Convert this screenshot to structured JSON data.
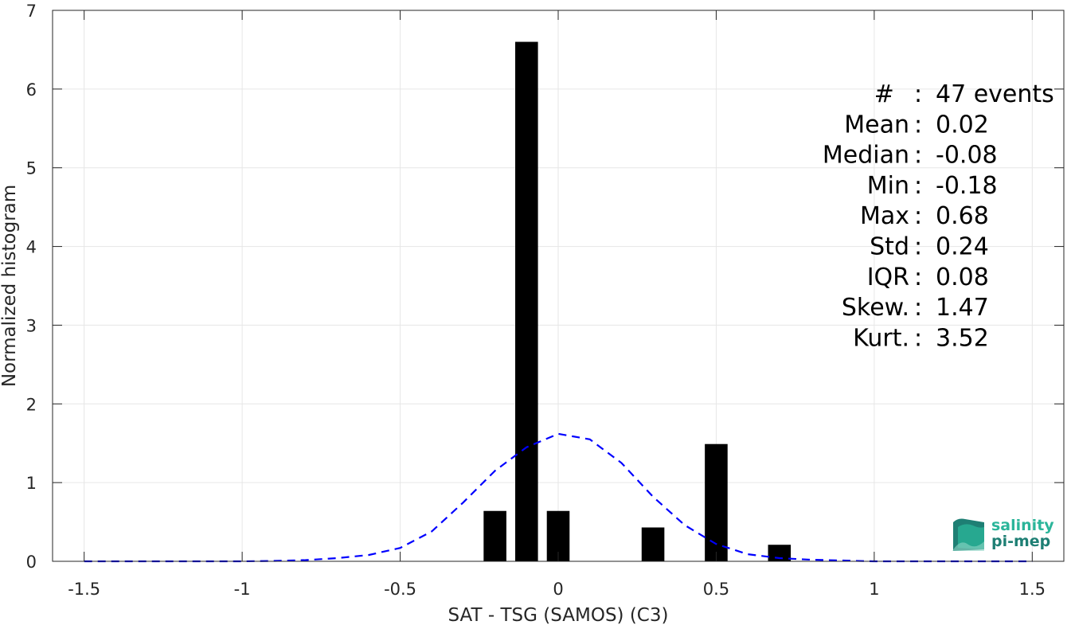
{
  "chart_data": {
    "type": "bar",
    "xlabel": "SAT - TSG (SAMOS) (C3)",
    "ylabel": "Normalized histogram",
    "xlim": [
      -1.6,
      1.6
    ],
    "ylim": [
      0,
      7
    ],
    "xticks": [
      -1.5,
      -1,
      -0.5,
      0,
      0.5,
      1,
      1.5
    ],
    "xtick_labels": [
      "-1.5",
      "-1",
      "-0.5",
      "0",
      "0.5",
      "1",
      "1.5"
    ],
    "yticks": [
      0,
      1,
      2,
      3,
      4,
      5,
      6,
      7
    ],
    "ytick_labels": [
      "0",
      "1",
      "2",
      "3",
      "4",
      "5",
      "6",
      "7"
    ],
    "grid": true,
    "bin_width": 0.1,
    "bars": [
      {
        "x": -0.2,
        "value": 0.64
      },
      {
        "x": -0.1,
        "value": 6.6
      },
      {
        "x": 0.0,
        "value": 0.64
      },
      {
        "x": 0.3,
        "value": 0.43
      },
      {
        "x": 0.5,
        "value": 1.49
      },
      {
        "x": 0.7,
        "value": 0.21
      }
    ],
    "bar_color": "#000000",
    "fit_curve": {
      "style": "dashed",
      "color": "#0000ff",
      "x": [
        -1.5,
        -1.4,
        -1.3,
        -1.2,
        -1.1,
        -1.0,
        -0.9,
        -0.8,
        -0.7,
        -0.6,
        -0.5,
        -0.4,
        -0.3,
        -0.2,
        -0.1,
        0.0,
        0.1,
        0.2,
        0.3,
        0.4,
        0.5,
        0.6,
        0.7,
        0.8,
        0.9,
        1.0,
        1.1,
        1.2,
        1.3,
        1.4,
        1.5
      ],
      "y": [
        0.0,
        0.0,
        0.0,
        0.0,
        0.0,
        0.0,
        0.005,
        0.015,
        0.04,
        0.08,
        0.17,
        0.38,
        0.75,
        1.15,
        1.45,
        1.62,
        1.55,
        1.25,
        0.82,
        0.46,
        0.22,
        0.09,
        0.04,
        0.02,
        0.01,
        0.0,
        0.0,
        0.0,
        0.0,
        0.0,
        0.0
      ]
    },
    "stats": [
      {
        "label": "#  ",
        "value": "47 events"
      },
      {
        "label": "Mean",
        "value": "0.02"
      },
      {
        "label": "Median",
        "value": "-0.08"
      },
      {
        "label": "Min",
        "value": "-0.18"
      },
      {
        "label": "Max",
        "value": "0.68"
      },
      {
        "label": "Std",
        "value": "0.24"
      },
      {
        "label": "IQR",
        "value": "0.08"
      },
      {
        "label": "Skew.",
        "value": "1.47"
      },
      {
        "label": "Kurt.",
        "value": "3.52"
      }
    ]
  },
  "logo": {
    "line1": "salinity",
    "line2": "pi-mep",
    "color_teal": "#2bb59a",
    "color_dark": "#1e7f74"
  }
}
